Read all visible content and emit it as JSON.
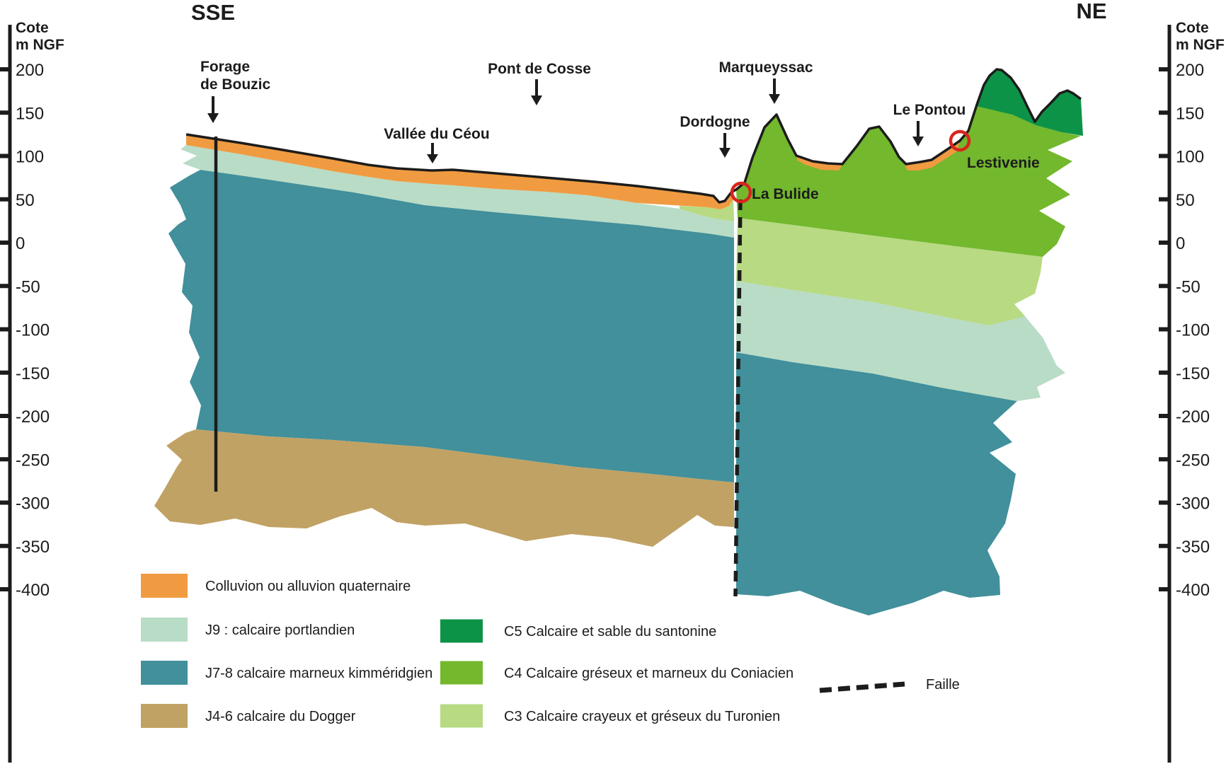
{
  "orientation": {
    "left": "SSE",
    "right": "NE"
  },
  "axes": {
    "title_line1": "Cote",
    "title_line2": "m NGF",
    "tick_values": [
      200,
      150,
      100,
      50,
      0,
      -50,
      -100,
      -150,
      -200,
      -250,
      -300,
      -350,
      -400
    ]
  },
  "colors": {
    "colluvium": "#f09b41",
    "j9": "#b9dcc6",
    "j78": "#41909b",
    "dogger": "#c0a264",
    "c5": "#0d9347",
    "c4": "#73b82d",
    "c3": "#b7da82",
    "marker_red": "#d8251d",
    "ink": "#1c1c1c"
  },
  "labels": {
    "forage_line1": "Forage",
    "forage_line2": "de Bouzic",
    "vallee_du_ceou": "Vallée du Céou",
    "pont_de_cosse": "Pont de Cosse",
    "dordogne": "Dordogne",
    "marqueyssac": "Marqueyssac",
    "le_pontou": "Le Pontou",
    "la_bulide": "La Bulide",
    "lestivenie": "Lestivenie"
  },
  "legend": {
    "left": [
      {
        "key": "colluvium",
        "label": "Colluvion ou alluvion quaternaire"
      },
      {
        "key": "j9",
        "label": "J9 : calcaire portlandien"
      },
      {
        "key": "j78",
        "label": "J7-8 calcaire marneux kimméridgien"
      },
      {
        "key": "dogger",
        "label": "J4-6 calcaire du Dogger"
      }
    ],
    "right": [
      {
        "key": "c5",
        "label": "C5 Calcaire et sable du santonine"
      },
      {
        "key": "c4",
        "label": "C4 Calcaire gréseux et marneux du Coniacien"
      },
      {
        "key": "c3",
        "label": "C3 Calcaire crayeux et gréseux du Turonien"
      }
    ],
    "fault_label": "Faille"
  }
}
